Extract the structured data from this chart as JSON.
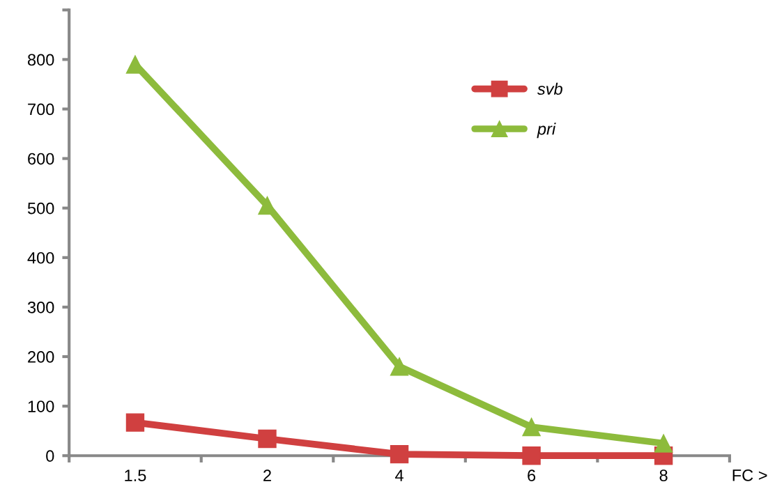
{
  "chart_data": {
    "type": "line",
    "xlabel": "FC >",
    "categories": [
      "1.5",
      "2",
      "4",
      "6",
      "8"
    ],
    "series": [
      {
        "name": "svb",
        "color": "#d04040",
        "marker": "square",
        "values": [
          67,
          34,
          3,
          0,
          0
        ]
      },
      {
        "name": "pri",
        "color": "#8dbb3c",
        "marker": "triangle",
        "values": [
          790,
          505,
          180,
          58,
          25
        ]
      }
    ],
    "ylim": [
      0,
      900
    ],
    "yticks": [
      0,
      100,
      200,
      300,
      400,
      500,
      600,
      700,
      800,
      {
        "value": 900,
        "label": null
      }
    ],
    "grid": false,
    "legend": "top right",
    "line_style": "solid"
  }
}
